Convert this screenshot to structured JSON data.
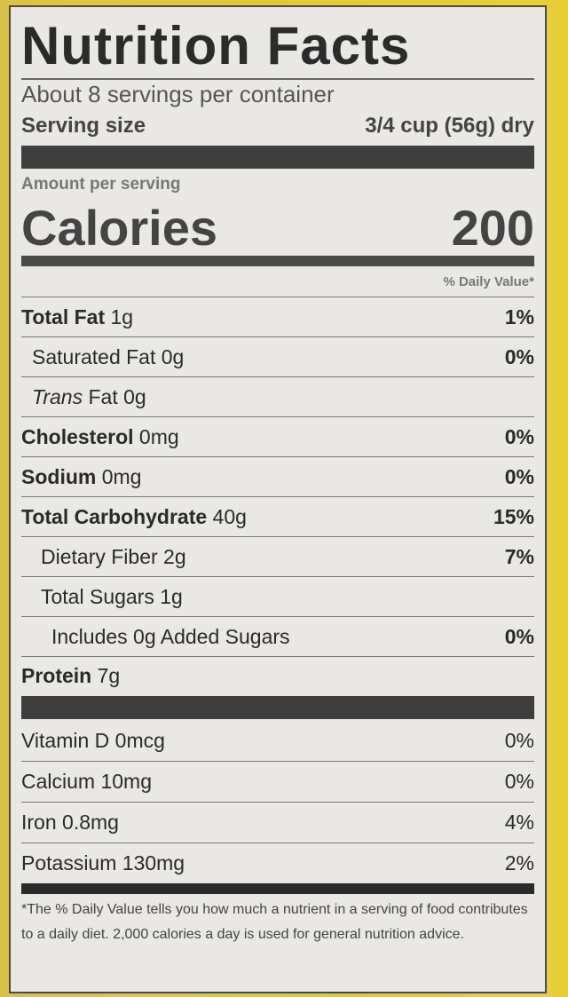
{
  "title": "Nutrition Facts",
  "servings": "About 8 servings per container",
  "serving_size": {
    "label": "Serving size",
    "value": "3/4 cup (56g) dry"
  },
  "amount_per_serving": "Amount per serving",
  "calories": {
    "label": "Calories",
    "value": "200"
  },
  "daily_value_header": "% Daily Value*",
  "nutrients": [
    {
      "name": "Total Fat",
      "amount": "1g",
      "dv": "1%"
    },
    {
      "name": "Saturated Fat",
      "amount": "0g",
      "dv": "0%"
    },
    {
      "name_italic": "Trans",
      "name": "Fat",
      "amount": "0g"
    },
    {
      "name": "Cholesterol",
      "amount": "0mg",
      "dv": "0%"
    },
    {
      "name": "Sodium",
      "amount": "0mg",
      "dv": "0%"
    },
    {
      "name": "Total Carbohydrate",
      "amount": "40g",
      "dv": "15%"
    },
    {
      "name": "Dietary Fiber",
      "amount": "2g",
      "dv": "7%"
    },
    {
      "name": "Total Sugars",
      "amount": "1g"
    },
    {
      "name": "Includes 0g Added Sugars",
      "dv": "0%"
    },
    {
      "name": "Protein",
      "amount": "7g"
    }
  ],
  "vitamins": [
    {
      "name": "Vitamin D",
      "amount": "0mcg",
      "dv": "0%"
    },
    {
      "name": "Calcium",
      "amount": "10mg",
      "dv": "0%"
    },
    {
      "name": "Iron",
      "amount": "0.8mg",
      "dv": "4%"
    },
    {
      "name": "Potassium",
      "amount": "130mg",
      "dv": "2%"
    }
  ],
  "footnote": "*The % Daily Value tells you how much a nutrient in a serving of food contributes to a daily diet. 2,000 calories a day is used for general nutrition advice."
}
